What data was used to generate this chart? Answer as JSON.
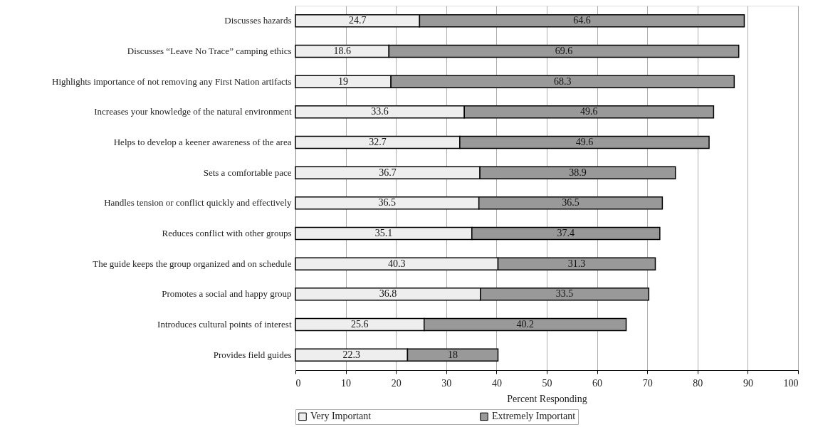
{
  "chart_data": {
    "type": "bar",
    "orientation": "horizontal",
    "stacked": true,
    "categories": [
      "Discusses hazards",
      "Discusses “Leave No Trace” camping ethics",
      "Highlights importance of not removing any First Nation artifacts",
      "Increases your knowledge of the natural environment",
      "Helps to develop a keener awareness of the area",
      "Sets a comfortable pace",
      "Handles tension or conflict quickly and effectively",
      "Reduces conflict with other groups",
      "The guide keeps the group organized and on schedule",
      "Promotes a social and happy group",
      "Introduces cultural points of interest",
      "Provides field guides"
    ],
    "series": [
      {
        "name": "Very Important",
        "color": "#eeeeee",
        "values": [
          24.7,
          18.6,
          19,
          33.6,
          32.7,
          36.7,
          36.5,
          35.1,
          40.3,
          36.8,
          25.6,
          22.3
        ]
      },
      {
        "name": "Extremely Important",
        "color": "#999999",
        "values": [
          64.6,
          69.6,
          68.3,
          49.6,
          49.6,
          38.9,
          36.5,
          37.4,
          31.3,
          33.5,
          40.2,
          18
        ]
      }
    ],
    "xlabel": "Percent Responding",
    "xlim": [
      0,
      100
    ],
    "xticks": [
      0,
      10,
      20,
      30,
      40,
      50,
      60,
      70,
      80,
      90,
      100
    ],
    "grid": "x",
    "legend": "bottom",
    "data_labels": true
  }
}
